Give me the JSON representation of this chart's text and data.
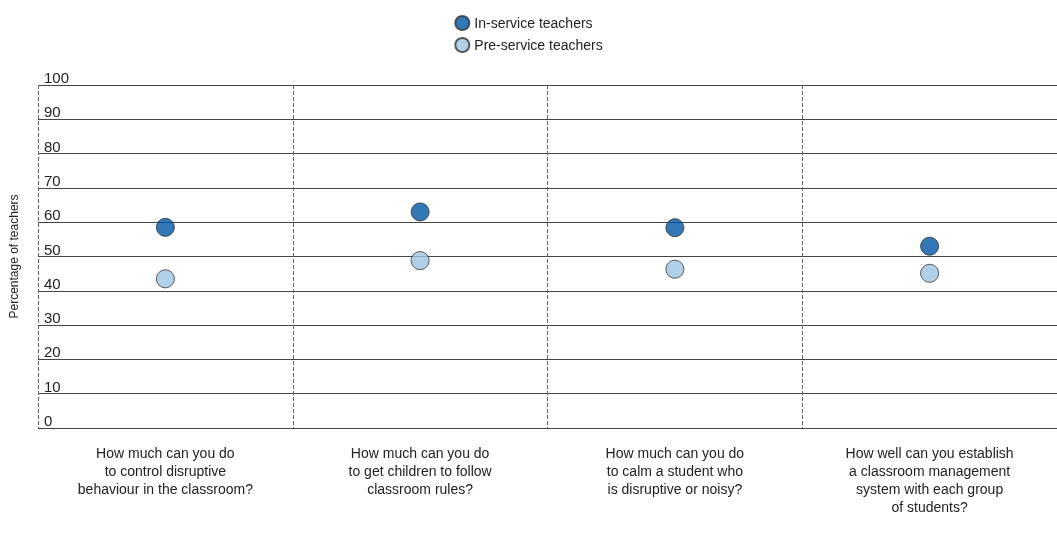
{
  "chart_data": {
    "type": "scatter",
    "ylabel": "Percentage of teachers",
    "categories": [
      "How much can you do\nto control disruptive\nbehaviour in the classroom?",
      "How much can you do\nto get children to follow\nclassroom rules?",
      "How much can you do\nto calm a student who\nis disruptive or noisy?",
      "How well can you establish\na classroom management\nsystem with each group\nof students?"
    ],
    "series": [
      {
        "name": "In-service teachers",
        "color": "#0056a4",
        "values": [
          58.5,
          63,
          58.4,
          53
        ]
      },
      {
        "name": "Pre-service teachers",
        "color": "#9dc3e0",
        "values": [
          43.5,
          48.8,
          46.3,
          45.1
        ]
      }
    ],
    "ylim": [
      0,
      100
    ],
    "yticks": [
      0,
      10,
      20,
      30,
      40,
      50,
      60,
      70,
      80,
      90,
      100
    ],
    "grid": true,
    "legend": "top",
    "marker": "circle"
  }
}
